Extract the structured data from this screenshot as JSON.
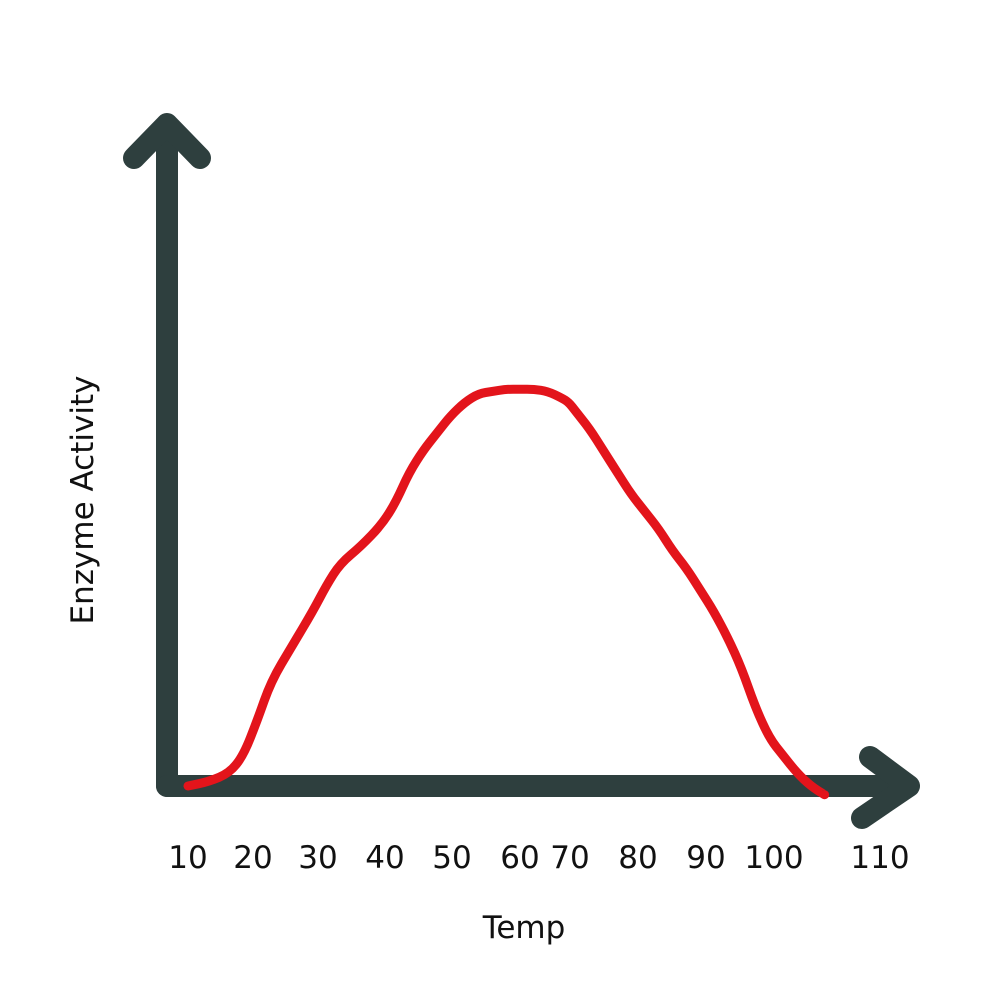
{
  "chart_data": {
    "type": "line",
    "title": "",
    "xlabel": "Temp",
    "ylabel": "Enzyme Activity",
    "x_ticks": [
      "10",
      "20",
      "30",
      "40",
      "50",
      "60",
      "70",
      "80",
      "90",
      "100",
      "110"
    ],
    "xlim": [
      10,
      110
    ],
    "ylim": [
      0,
      1
    ],
    "grid": false,
    "colors": {
      "axis": "#2e3f3e",
      "series": "#e3141b",
      "text": "#111111"
    },
    "series": [
      {
        "name": "",
        "x": [
          10,
          13,
          16,
          18,
          20,
          22,
          25,
          28,
          30,
          32,
          35,
          38,
          40,
          42,
          44,
          46,
          48,
          50,
          52,
          54,
          56,
          58,
          60,
          62,
          64,
          65,
          66,
          68,
          70,
          72,
          74,
          76,
          78,
          80,
          82,
          84,
          86,
          88,
          90,
          92,
          94,
          96,
          98,
          100,
          102
        ],
        "y": [
          0.0,
          0.01,
          0.03,
          0.07,
          0.15,
          0.24,
          0.32,
          0.4,
          0.46,
          0.51,
          0.55,
          0.6,
          0.65,
          0.72,
          0.77,
          0.81,
          0.85,
          0.88,
          0.9,
          0.905,
          0.91,
          0.91,
          0.91,
          0.905,
          0.89,
          0.88,
          0.86,
          0.82,
          0.77,
          0.72,
          0.67,
          0.63,
          0.59,
          0.54,
          0.5,
          0.45,
          0.4,
          0.34,
          0.27,
          0.18,
          0.11,
          0.07,
          0.03,
          0.0,
          -0.02
        ]
      }
    ]
  }
}
